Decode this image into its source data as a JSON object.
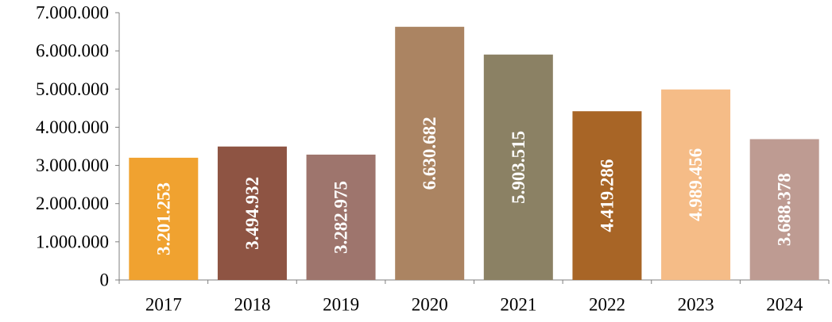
{
  "chart_data": {
    "type": "bar",
    "categories": [
      "2017",
      "2018",
      "2019",
      "2020",
      "2021",
      "2022",
      "2023",
      "2024"
    ],
    "values": [
      3201253,
      3494932,
      3282975,
      6630682,
      5903515,
      4419286,
      4989456,
      3688378
    ],
    "value_labels": [
      "3.201.253",
      "3.494.932",
      "3.282.975",
      "6.630.682",
      "5.903.515",
      "4.419.286",
      "4.989.456",
      "3.688.378"
    ],
    "bar_colors": [
      "#f0a230",
      "#8e5443",
      "#9e756d",
      "#ab8462",
      "#8b8164",
      "#a86526",
      "#f5bc87",
      "#be9b92"
    ],
    "y_ticks": [
      0,
      1000000,
      2000000,
      3000000,
      4000000,
      5000000,
      6000000,
      7000000
    ],
    "y_tick_labels": [
      "0",
      "1.000.000",
      "2.000.000",
      "3.000.000",
      "4.000.000",
      "5.000.000",
      "6.000.000",
      "7.000.000"
    ],
    "ylim": [
      0,
      7000000
    ],
    "title": "",
    "xlabel": "",
    "ylabel": "",
    "grid": false,
    "legend": "none"
  }
}
